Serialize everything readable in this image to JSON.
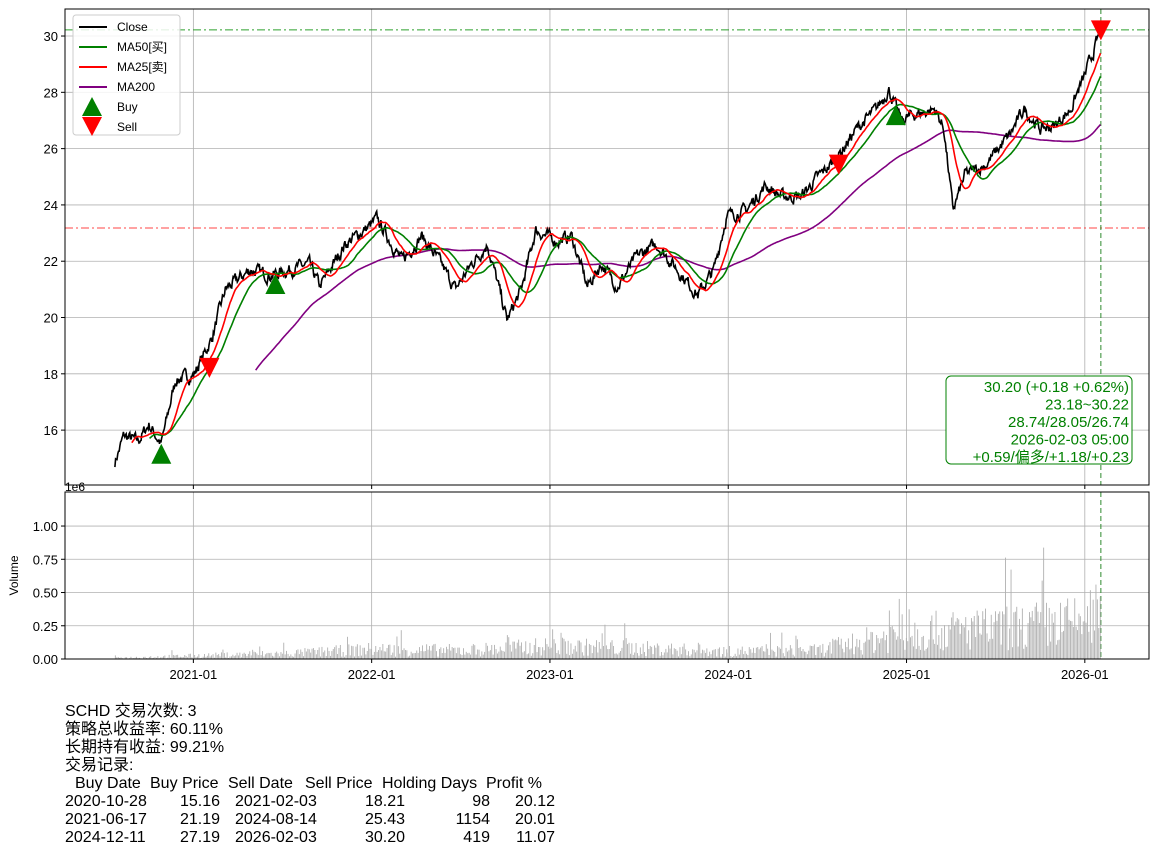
{
  "chart_data": [
    {
      "type": "line",
      "panel": "price",
      "x_unit": "decimal year",
      "xlim": [
        2020.28,
        2026.36
      ],
      "ylim": [
        14.05,
        30.96
      ],
      "yticks": [
        16,
        18,
        20,
        22,
        24,
        26,
        28,
        30
      ],
      "xticks": [
        {
          "v": 2021.0,
          "label": "2021-01"
        },
        {
          "v": 2022.0,
          "label": "2022-01"
        },
        {
          "v": 2023.0,
          "label": "2023-01"
        },
        {
          "v": 2024.0,
          "label": "2024-01"
        },
        {
          "v": 2025.0,
          "label": "2025-01"
        },
        {
          "v": 2026.0,
          "label": "2026-01"
        }
      ],
      "grid": true,
      "legend_position": "top-left",
      "legend": [
        {
          "label": "Close",
          "color": "#000000",
          "kind": "line"
        },
        {
          "label": "MA50[买]",
          "color": "#008000",
          "kind": "line"
        },
        {
          "label": "MA25[卖]",
          "color": "#ff0000",
          "kind": "line"
        },
        {
          "label": "MA200",
          "color": "#800080",
          "kind": "line"
        },
        {
          "label": "Buy",
          "color": "#008000",
          "kind": "up"
        },
        {
          "label": "Sell",
          "color": "#ff0000",
          "kind": "down"
        }
      ],
      "close_keypoints": [
        [
          2020.56,
          14.86
        ],
        [
          2020.61,
          15.8
        ],
        [
          2020.69,
          15.6
        ],
        [
          2020.75,
          16.2
        ],
        [
          2020.82,
          15.5
        ],
        [
          2020.9,
          17.8
        ],
        [
          2021.0,
          17.95
        ],
        [
          2021.1,
          19.2
        ],
        [
          2021.18,
          21.0
        ],
        [
          2021.32,
          21.7
        ],
        [
          2021.43,
          21.5
        ],
        [
          2021.54,
          21.7
        ],
        [
          2021.65,
          21.9
        ],
        [
          2021.71,
          21.1
        ],
        [
          2021.85,
          22.6
        ],
        [
          2022.0,
          23.3
        ],
        [
          2022.03,
          23.5
        ],
        [
          2022.17,
          22.0
        ],
        [
          2022.28,
          22.9
        ],
        [
          2022.39,
          21.9
        ],
        [
          2022.47,
          21.0
        ],
        [
          2022.56,
          21.9
        ],
        [
          2022.65,
          22.6
        ],
        [
          2022.76,
          19.9
        ],
        [
          2022.84,
          21.0
        ],
        [
          2022.92,
          23.1
        ],
        [
          2023.04,
          22.7
        ],
        [
          2023.12,
          22.9
        ],
        [
          2023.21,
          21.1
        ],
        [
          2023.29,
          21.9
        ],
        [
          2023.38,
          21.1
        ],
        [
          2023.49,
          22.2
        ],
        [
          2023.6,
          22.6
        ],
        [
          2023.74,
          21.5
        ],
        [
          2023.83,
          20.8
        ],
        [
          2023.92,
          21.7
        ],
        [
          2023.99,
          23.6
        ],
        [
          2024.1,
          23.8
        ],
        [
          2024.21,
          24.7
        ],
        [
          2024.3,
          24.3
        ],
        [
          2024.41,
          24.3
        ],
        [
          2024.49,
          24.9
        ],
        [
          2024.6,
          25.6
        ],
        [
          2024.72,
          26.7
        ],
        [
          2024.83,
          27.4
        ],
        [
          2024.9,
          28.1
        ],
        [
          2024.97,
          27.0
        ],
        [
          2025.04,
          27.2
        ],
        [
          2025.16,
          27.4
        ],
        [
          2025.21,
          26.7
        ],
        [
          2025.26,
          23.8
        ],
        [
          2025.33,
          25.1
        ],
        [
          2025.44,
          25.4
        ],
        [
          2025.58,
          26.5
        ],
        [
          2025.66,
          27.4
        ],
        [
          2025.75,
          26.7
        ],
        [
          2025.83,
          26.8
        ],
        [
          2025.92,
          27.4
        ],
        [
          2026.0,
          28.6
        ],
        [
          2026.04,
          29.3
        ],
        [
          2026.09,
          30.2
        ]
      ],
      "ma_windows": {
        "MA50": 50,
        "MA25": 25,
        "MA200": 200
      },
      "buy_points": [
        {
          "date": "2020-10-28",
          "x": 2020.82,
          "price": 15.16
        },
        {
          "date": "2021-06-17",
          "x": 2021.46,
          "price": 21.19
        },
        {
          "date": "2024-12-11",
          "x": 2024.94,
          "price": 27.19
        }
      ],
      "sell_points": [
        {
          "date": "2021-02-03",
          "x": 2021.09,
          "price": 18.21
        },
        {
          "date": "2024-08-14",
          "x": 2024.62,
          "price": 25.43
        },
        {
          "date": "2026-02-03",
          "x": 2026.09,
          "price": 30.2
        }
      ],
      "hlines": [
        {
          "value": 30.22,
          "color": "#2ca02c"
        },
        {
          "value": 23.18,
          "color": "#ff4444"
        }
      ],
      "vline": {
        "x": 2026.09,
        "color": "#2e8b2e"
      },
      "annotation": [
        "30.20 (+0.18 +0.62%)",
        "23.18~30.22",
        "28.74/28.05/26.74",
        "2026-02-03 05:00",
        "+0.59/偏多/+1.18/+0.23"
      ],
      "annotation_color": "#008000"
    },
    {
      "type": "bar",
      "panel": "volume",
      "ylabel": "Volume",
      "scale_label": "1e6",
      "ylim": [
        0,
        1.256
      ],
      "yticks": [
        "0.00",
        "0.25",
        "0.50",
        "0.75",
        "1.00"
      ],
      "volume_level_keypoints": [
        [
          2020.56,
          0.01
        ],
        [
          2021.0,
          0.03
        ],
        [
          2021.5,
          0.05
        ],
        [
          2022.0,
          0.09
        ],
        [
          2022.5,
          0.08
        ],
        [
          2023.0,
          0.12
        ],
        [
          2023.5,
          0.1
        ],
        [
          2024.0,
          0.07
        ],
        [
          2024.5,
          0.08
        ],
        [
          2024.8,
          0.18
        ],
        [
          2025.0,
          0.25
        ],
        [
          2025.5,
          0.28
        ],
        [
          2026.0,
          0.35
        ],
        [
          2026.09,
          0.45
        ]
      ],
      "color": "#b0b0b0"
    }
  ],
  "summary": {
    "line1": "SCHD 交易次数: 3",
    "line2": "策略总收益率: 60.11%",
    "line3": "长期持有收益: 99.21%",
    "line4": "交易记录:",
    "headers": [
      "Buy Date",
      "Buy Price",
      "Sell Date",
      "Sell Price",
      "Holding Days",
      "Profit %"
    ],
    "rows": [
      [
        "2020-10-28",
        "15.16",
        "2021-02-03",
        "18.21",
        "98",
        "20.12"
      ],
      [
        "2021-06-17",
        "21.19",
        "2024-08-14",
        "25.43",
        "1154",
        "20.01"
      ],
      [
        "2024-12-11",
        "27.19",
        "2026-02-03",
        "30.20",
        "419",
        "11.07"
      ]
    ]
  }
}
